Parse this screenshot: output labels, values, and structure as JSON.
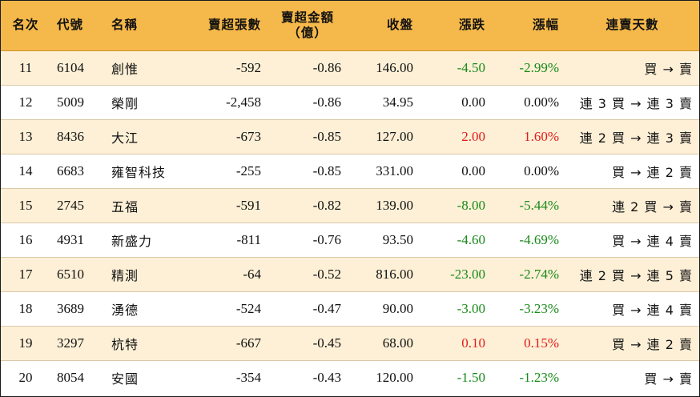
{
  "colors": {
    "header_bg": "#f5b84a",
    "row_alt_bg": "#fdf0d6",
    "up": "#e21a1a",
    "down": "#1a8a1a"
  },
  "headers": {
    "rank": "名次",
    "code": "代號",
    "name": "名稱",
    "net_sell_lots": "賣超張數",
    "net_sell_amount": "賣超金額",
    "net_sell_amount_unit": "（億）",
    "close": "收盤",
    "change": "漲跌",
    "change_pct": "漲幅",
    "streak": "連賣天數"
  },
  "rows": [
    {
      "rank": "11",
      "code": "6104",
      "name": "創惟",
      "lots": "-592",
      "amount": "-0.86",
      "close": "146.00",
      "change": "-4.50",
      "pct": "-2.99%",
      "dir": "down",
      "streak": "買 → 賣"
    },
    {
      "rank": "12",
      "code": "5009",
      "name": "榮剛",
      "lots": "-2,458",
      "amount": "-0.86",
      "close": "34.95",
      "change": "0.00",
      "pct": "0.00%",
      "dir": "flat",
      "streak": "連 3 買 → 連 3 賣"
    },
    {
      "rank": "13",
      "code": "8436",
      "name": "大江",
      "lots": "-673",
      "amount": "-0.85",
      "close": "127.00",
      "change": "2.00",
      "pct": "1.60%",
      "dir": "up",
      "streak": "連 2 買 → 連 3 賣"
    },
    {
      "rank": "14",
      "code": "6683",
      "name": "雍智科技",
      "lots": "-255",
      "amount": "-0.85",
      "close": "331.00",
      "change": "0.00",
      "pct": "0.00%",
      "dir": "flat",
      "streak": "買 → 連 2 賣"
    },
    {
      "rank": "15",
      "code": "2745",
      "name": "五福",
      "lots": "-591",
      "amount": "-0.82",
      "close": "139.00",
      "change": "-8.00",
      "pct": "-5.44%",
      "dir": "down",
      "streak": "連 2 買 → 賣"
    },
    {
      "rank": "16",
      "code": "4931",
      "name": "新盛力",
      "lots": "-811",
      "amount": "-0.76",
      "close": "93.50",
      "change": "-4.60",
      "pct": "-4.69%",
      "dir": "down",
      "streak": "買 → 連 4 賣"
    },
    {
      "rank": "17",
      "code": "6510",
      "name": "精測",
      "lots": "-64",
      "amount": "-0.52",
      "close": "816.00",
      "change": "-23.00",
      "pct": "-2.74%",
      "dir": "down",
      "streak": "連 2 買 → 連 5 賣"
    },
    {
      "rank": "18",
      "code": "3689",
      "name": "湧德",
      "lots": "-524",
      "amount": "-0.47",
      "close": "90.00",
      "change": "-3.00",
      "pct": "-3.23%",
      "dir": "down",
      "streak": "買 → 連 4 賣"
    },
    {
      "rank": "19",
      "code": "3297",
      "name": "杭特",
      "lots": "-667",
      "amount": "-0.45",
      "close": "68.00",
      "change": "0.10",
      "pct": "0.15%",
      "dir": "up",
      "streak": "買 → 連 2 賣"
    },
    {
      "rank": "20",
      "code": "8054",
      "name": "安國",
      "lots": "-354",
      "amount": "-0.43",
      "close": "120.00",
      "change": "-1.50",
      "pct": "-1.23%",
      "dir": "down",
      "streak": "買 → 賣"
    }
  ]
}
